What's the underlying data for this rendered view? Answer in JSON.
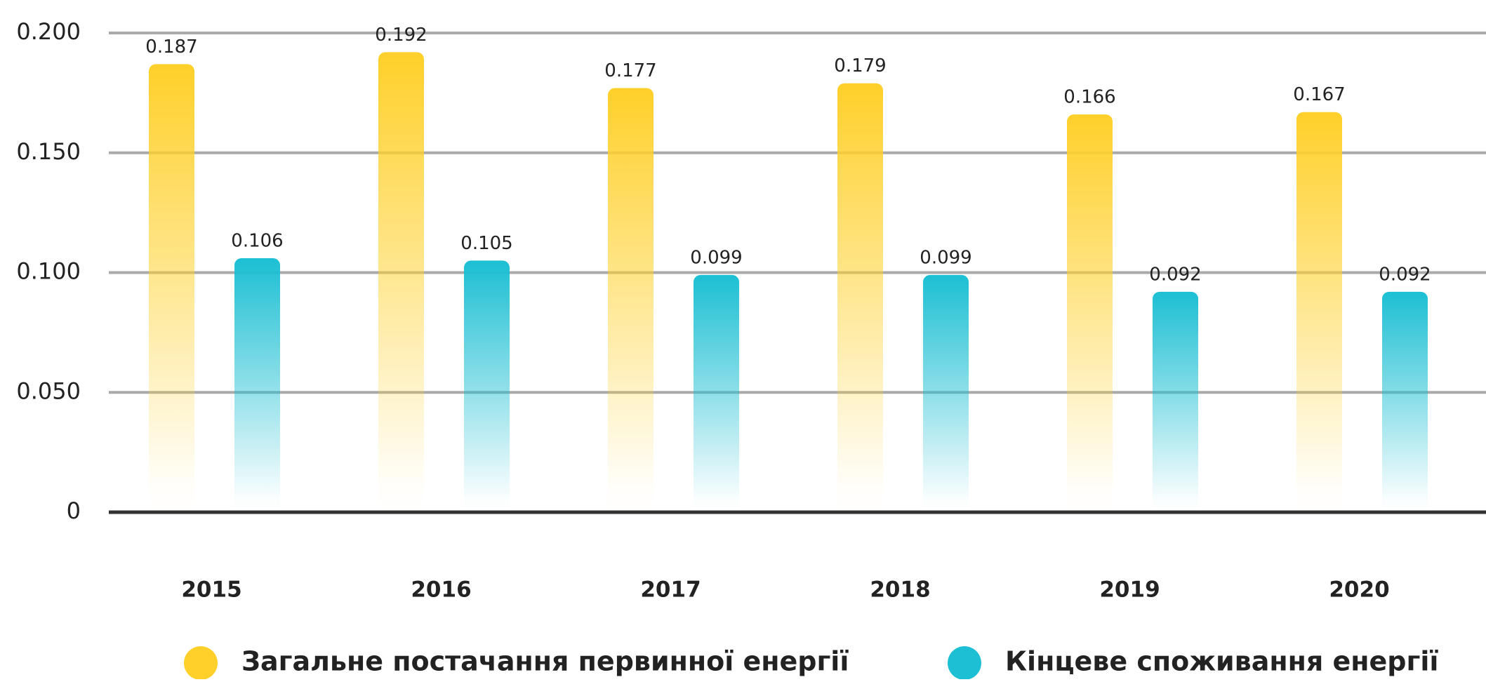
{
  "chart_data": {
    "type": "bar",
    "categories": [
      "2015",
      "2016",
      "2017",
      "2018",
      "2019",
      "2020"
    ],
    "series": [
      {
        "name": "Загальне постачання первинної енергії",
        "color": "#ffd02a",
        "values": [
          0.187,
          0.192,
          0.177,
          0.179,
          0.166,
          0.167
        ]
      },
      {
        "name": "Кінцеве споживання енергії",
        "color": "#1cbfd3",
        "values": [
          0.106,
          0.105,
          0.099,
          0.099,
          0.092,
          0.092
        ]
      }
    ],
    "ylim": [
      0,
      0.2
    ],
    "yticks": [
      0,
      {
        "value": 0.05,
        "label": "0.050"
      },
      {
        "value": 0.1,
        "label": "0.100"
      },
      {
        "value": 0.15,
        "label": "0.150"
      },
      {
        "value": 0.2,
        "label": "0.200"
      }
    ],
    "grid": true,
    "legend": "bottom"
  }
}
